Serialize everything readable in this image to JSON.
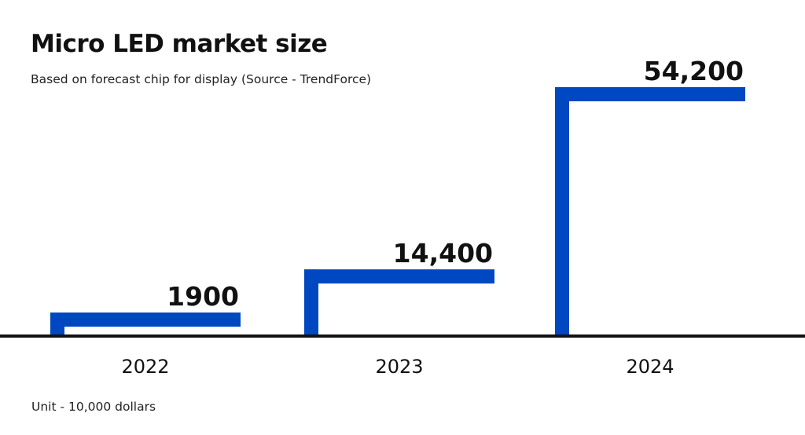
{
  "chart_data": {
    "type": "bar",
    "title": "Micro LED market size",
    "subtitle": "Based on forecast chip for display (Source - TrendForce)",
    "unit_note": "Unit - 10,000 dollars",
    "categories": [
      "2022",
      "2023",
      "2024"
    ],
    "values": [
      1900,
      14400,
      54200
    ],
    "value_labels": [
      "1900",
      "14,400",
      "54,200"
    ],
    "xlabel": "",
    "ylabel": "",
    "ylim": [
      0,
      54200
    ],
    "grid": false,
    "legend": "none",
    "colors": {
      "bar": "#0048C2",
      "axis": "#111111",
      "text": "#111111"
    }
  }
}
